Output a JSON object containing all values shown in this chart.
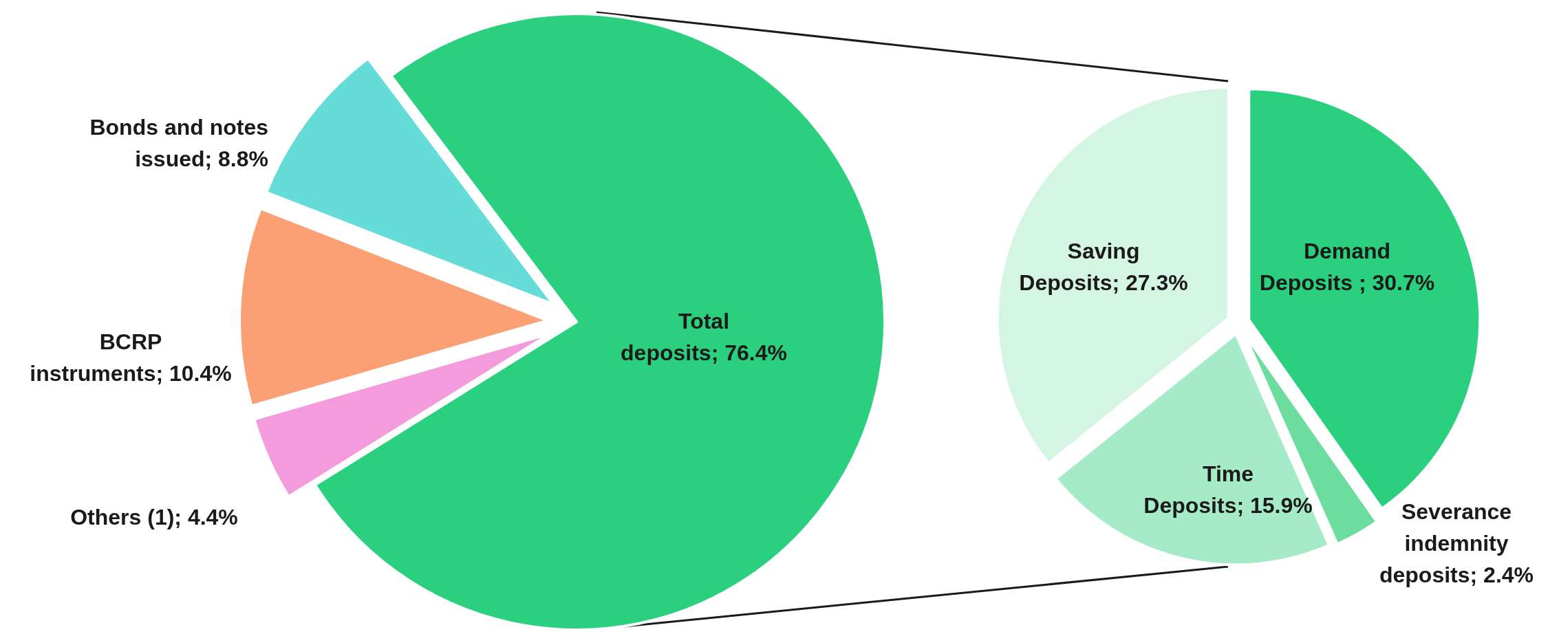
{
  "chart_data": [
    {
      "type": "pie",
      "categories": [
        "Total deposits",
        "Others (1)",
        "BCRP instruments",
        "Bonds and notes issued"
      ],
      "values": [
        76.4,
        4.4,
        10.4,
        8.8
      ],
      "colors": [
        "#2bd07f",
        "#f49bde",
        "#fba075",
        "#66dcd8"
      ],
      "value_labels": [
        "76.4%",
        "4.4%",
        "10.4%",
        "8.8%"
      ]
    },
    {
      "type": "pie",
      "categories": [
        "Demand Deposits",
        "Severance indemnity deposits",
        "Time Deposits",
        "Saving Deposits"
      ],
      "values": [
        30.7,
        2.4,
        15.9,
        27.3
      ],
      "colors": [
        "#2bd07f",
        "#6ddc9f",
        "#a6ebc8",
        "#d5f5e3"
      ],
      "value_labels": [
        "30.7%",
        "2.4%",
        "15.9%",
        "27.3%"
      ]
    }
  ]
}
